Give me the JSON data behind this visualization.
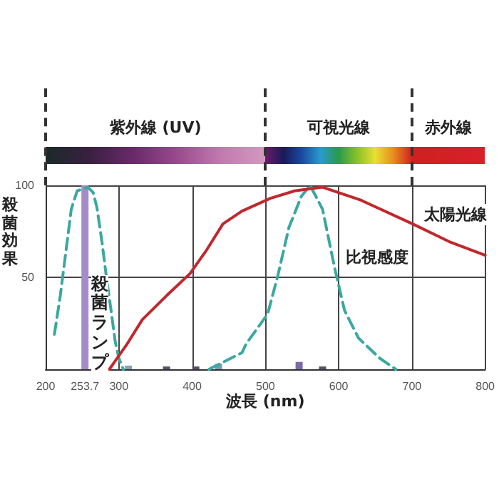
{
  "chart_data": {
    "type": "line",
    "xlabel": "波長 (nm)",
    "ylabel": "殺菌効果",
    "xlim": [
      200,
      800
    ],
    "xticks": [
      200,
      253.7,
      300,
      400,
      500,
      600,
      700,
      800
    ],
    "ylim": [
      0,
      100
    ],
    "yticks": [
      50,
      100
    ],
    "grid": true,
    "legend": false,
    "marker": "none",
    "annotations": [
      "紫外線 (UV)",
      "可視光線",
      "赤外線"
    ],
    "series": [
      {
        "type": "bar",
        "name": "殺菌ランプ",
        "x": [
          253.7,
          313,
          365,
          405,
          436,
          546,
          578
        ],
        "values": [
          100,
          2,
          1.5,
          1.5,
          3,
          4,
          1.5
        ],
        "colors": [
          "#a58bc9",
          "#8aa0b8",
          "#50506a",
          "#50506a",
          "#7a9ab0",
          "#7a6aa8",
          "#50506a"
        ]
      },
      {
        "line_style": "dashed",
        "color": "#3aa8a0",
        "x": [
          212,
          220,
          228,
          235,
          243,
          258,
          265,
          270,
          277,
          283,
          290,
          295,
          300,
          306
        ],
        "values": [
          19,
          40,
          65,
          87,
          97,
          99,
          96,
          88,
          69,
          50,
          30,
          15,
          6,
          0
        ]
      },
      {
        "name": "比視感度",
        "line_style": "dashed",
        "color": "#3aa8a0",
        "x": [
          423,
          468,
          474,
          503,
          517,
          532,
          549,
          561,
          578,
          594,
          608,
          627,
          656,
          678
        ],
        "values": [
          0,
          9,
          14,
          30,
          51,
          77,
          94,
          100,
          87,
          56,
          32,
          17,
          6,
          0
        ]
      },
      {
        "name": "太陽光線",
        "line_style": "solid",
        "color": "#c0282d",
        "x": [
          287,
          310,
          332,
          365,
          397,
          420,
          442,
          468,
          507,
          540,
          578,
          630,
          701,
          753,
          800
        ],
        "values": [
          0,
          13,
          27,
          40,
          52,
          65,
          79,
          86,
          93,
          97,
          99,
          92,
          79,
          69,
          62
        ]
      }
    ]
  }
}
